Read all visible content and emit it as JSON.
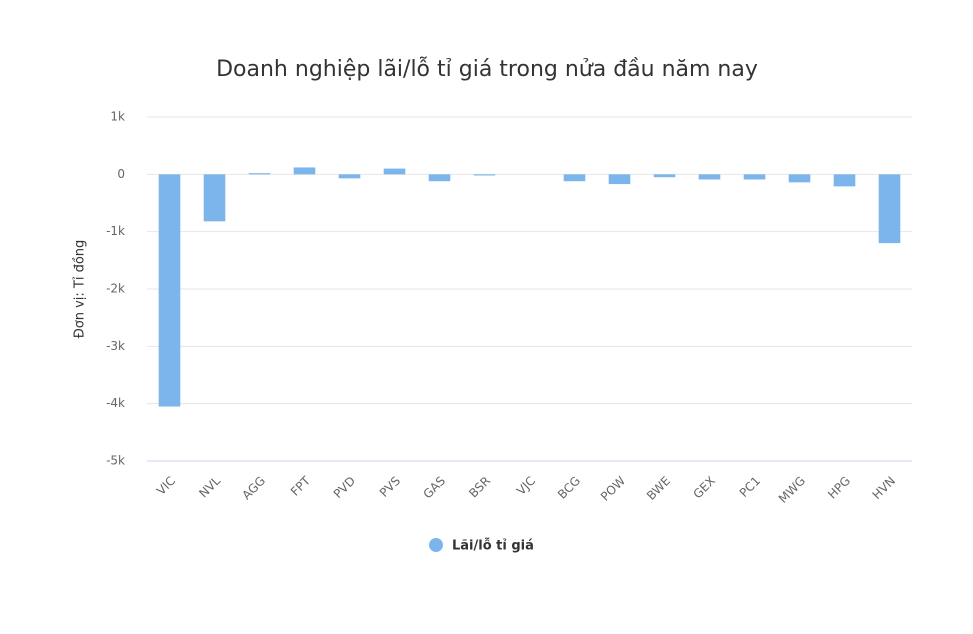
{
  "chart_data": {
    "type": "bar",
    "title": "Doanh nghiệp lãi/lỗ tỉ giá trong nửa đầu năm nay",
    "y_label": "Đơn vị: Tỉ đồng",
    "categories": [
      "VIC",
      "NVL",
      "AGG",
      "FPT",
      "PVD",
      "PVS",
      "GAS",
      "BSR",
      "VJC",
      "BCG",
      "POW",
      "BWE",
      "GEX",
      "PC1",
      "MWG",
      "HPG",
      "HVN"
    ],
    "series": [
      {
        "name": "Lãi/lỗ tỉ giá",
        "color": "#7cb5ec",
        "values": [
          -4050,
          -820,
          20,
          120,
          -70,
          100,
          -120,
          -20,
          0,
          -120,
          -170,
          -50,
          -90,
          -90,
          -140,
          -210,
          -1200
        ]
      }
    ],
    "ylim": [
      -5000,
      1000
    ],
    "yticks": [
      {
        "value": 1000,
        "label": "1k"
      },
      0,
      {
        "value": -1000,
        "label": "-1k"
      },
      {
        "value": -2000,
        "label": "-2k"
      },
      {
        "value": -3000,
        "label": "-3k"
      },
      {
        "value": -4000,
        "label": "-4k"
      },
      {
        "value": -5000,
        "label": "-5k"
      }
    ],
    "grid": true,
    "legend": "bottom"
  }
}
